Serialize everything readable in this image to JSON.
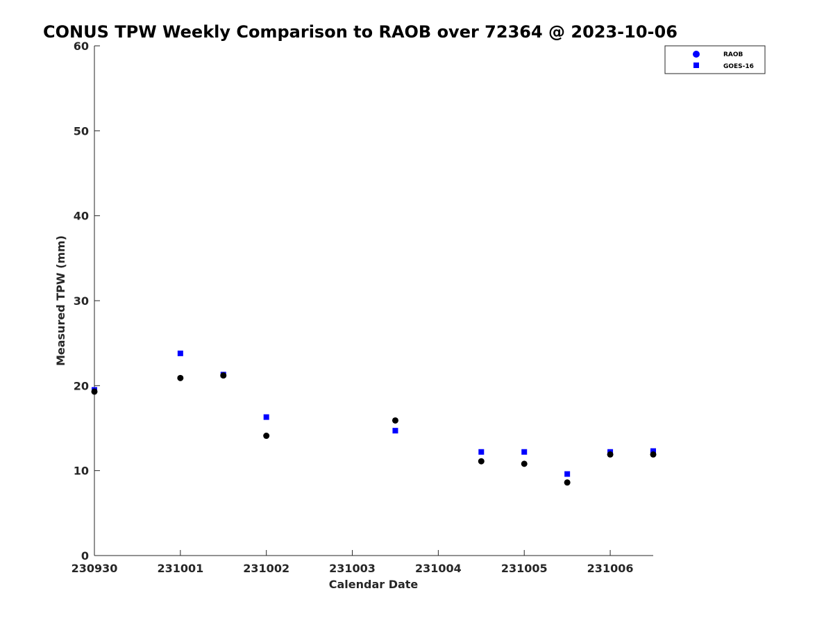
{
  "chart_data": {
    "type": "scatter",
    "title": "CONUS TPW Weekly Comparison to RAOB over 72364 @ 2023-10-06",
    "xlabel": "Calendar Date",
    "ylabel": "Measured TPW (mm)",
    "xlim": [
      0,
      6.5
    ],
    "ylim": [
      0,
      60
    ],
    "x_ticks": [
      {
        "value": 0,
        "label": "230930"
      },
      {
        "value": 1,
        "label": "231001"
      },
      {
        "value": 2,
        "label": "231002"
      },
      {
        "value": 3,
        "label": "231003"
      },
      {
        "value": 4,
        "label": "231004"
      },
      {
        "value": 5,
        "label": "231005"
      },
      {
        "value": 6,
        "label": "231006"
      }
    ],
    "y_ticks": [
      0,
      10,
      20,
      30,
      40,
      50,
      60
    ],
    "grid": false,
    "legend_position": "top-right",
    "series": [
      {
        "name": "RAOB",
        "marker": "circle",
        "color": "#0000ff",
        "legend_color": "#0000ff",
        "point_color": "#000000",
        "points": [
          {
            "x": 0.0,
            "y": 19.3
          },
          {
            "x": 1.0,
            "y": 20.9
          },
          {
            "x": 1.5,
            "y": 21.2
          },
          {
            "x": 2.0,
            "y": 14.1
          },
          {
            "x": 3.5,
            "y": 15.9
          },
          {
            "x": 4.5,
            "y": 11.1
          },
          {
            "x": 5.0,
            "y": 10.8
          },
          {
            "x": 5.5,
            "y": 8.6
          },
          {
            "x": 6.0,
            "y": 11.9
          },
          {
            "x": 6.5,
            "y": 11.9
          }
        ]
      },
      {
        "name": "GOES-16",
        "marker": "square",
        "color": "#0000ff",
        "legend_color": "#0000ff",
        "point_color": "#0000ff",
        "points": [
          {
            "x": 0.0,
            "y": 19.5
          },
          {
            "x": 1.0,
            "y": 23.8
          },
          {
            "x": 1.5,
            "y": 21.3
          },
          {
            "x": 2.0,
            "y": 16.3
          },
          {
            "x": 3.5,
            "y": 14.7
          },
          {
            "x": 4.5,
            "y": 12.2
          },
          {
            "x": 5.0,
            "y": 12.2
          },
          {
            "x": 5.5,
            "y": 9.6
          },
          {
            "x": 6.0,
            "y": 12.2
          },
          {
            "x": 6.5,
            "y": 12.3
          }
        ]
      }
    ]
  }
}
